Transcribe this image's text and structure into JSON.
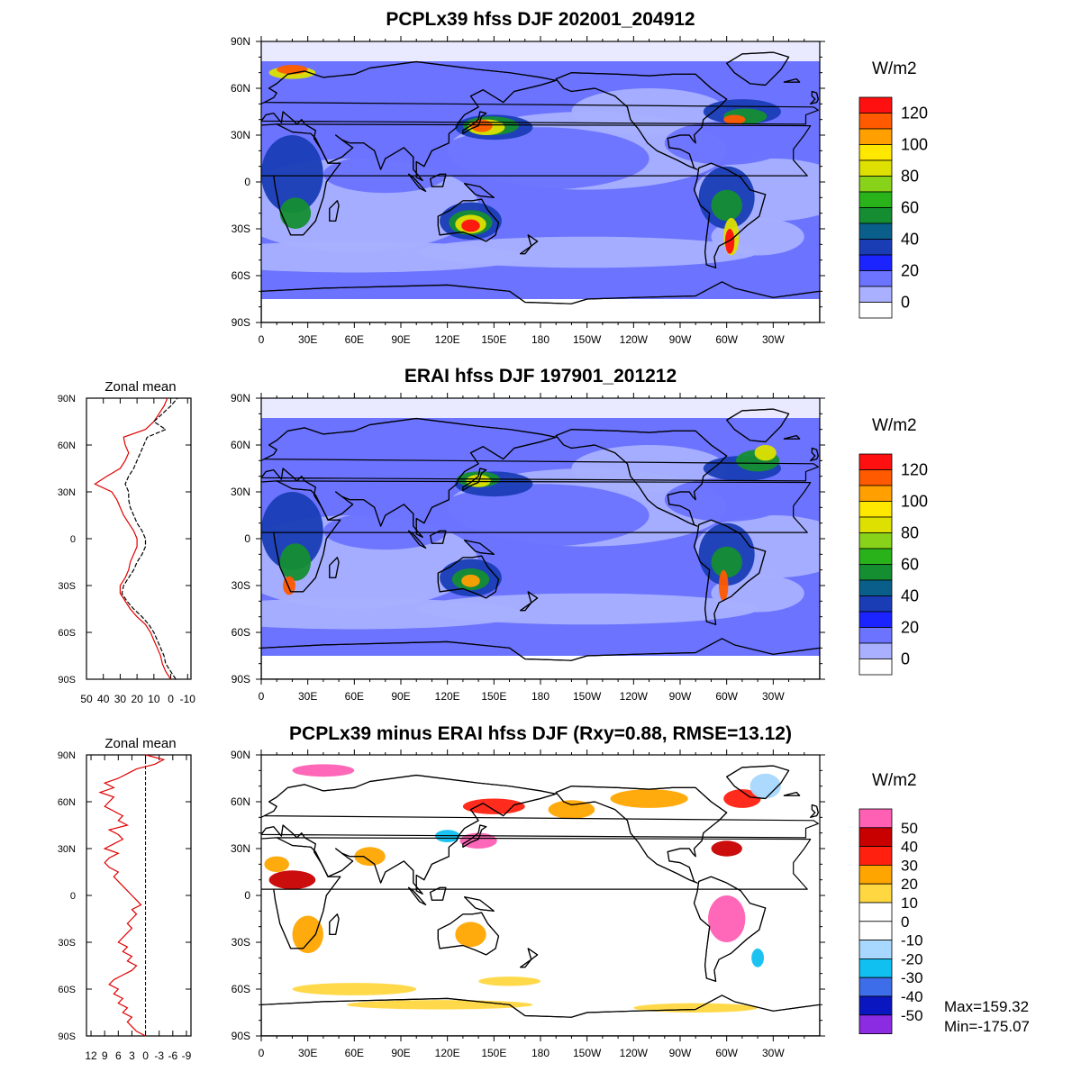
{
  "colors": {
    "full_levels": [
      "#ffffff",
      "#a8b0ff",
      "#6b73ff",
      "#1b23ff",
      "#1a3db6",
      "#0a5f8a",
      "#158e32",
      "#2ab21a",
      "#89d21a",
      "#dde000",
      "#ffe800",
      "#ffa000",
      "#ff5a00",
      "#ff1010"
    ],
    "diff_levels": [
      "#8b2be2",
      "#0a16c0",
      "#3d6de8",
      "#10c0f0",
      "#a8d8ff",
      "#ffffff",
      "#ffffff",
      "#ffd740",
      "#ffa500",
      "#ff2010",
      "#c80000",
      "#ff60b4"
    ],
    "land": "#ffffff",
    "coast": "#000000",
    "line_model": "#e00000",
    "line_obs": "#000000"
  },
  "panels": [
    {
      "id": "top",
      "title": "PCPLx39 hfss DJF 202001_204912",
      "type": "full",
      "unit": "W/m2",
      "colorbar_labels": [
        "120",
        "100",
        "80",
        "60",
        "40",
        "20",
        "0"
      ]
    },
    {
      "id": "middle",
      "title": "ERAI hfss DJF 197901_201212",
      "type": "full",
      "unit": "W/m2",
      "colorbar_labels": [
        "120",
        "100",
        "80",
        "60",
        "40",
        "20",
        "0"
      ]
    },
    {
      "id": "bottom",
      "title": "PCPLx39 minus ERAI hfss DJF (Rxy=0.88, RMSE=13.12)",
      "type": "diff",
      "unit": "W/m2",
      "colorbar_labels": [
        "50",
        "40",
        "30",
        "20",
        "10",
        "0",
        "-10",
        "-20",
        "-30",
        "-40",
        "-50"
      ],
      "max_label": "Max=159.32",
      "min_label": "Min=-175.07"
    }
  ],
  "axes": {
    "lat_labels": [
      "90N",
      "60N",
      "30N",
      "0",
      "30S",
      "60S",
      "90S"
    ],
    "lon_labels": [
      "0",
      "30E",
      "60E",
      "90E",
      "120E",
      "150E",
      "180",
      "150W",
      "120W",
      "90W",
      "60W",
      "30W"
    ]
  },
  "zonal_mean": [
    {
      "title": "Zonal mean",
      "x_labels": [
        "50",
        "40",
        "30",
        "20",
        "10",
        "0",
        "-10"
      ],
      "xlim": [
        50,
        -12
      ],
      "lat_labels": [
        "90N",
        "60N",
        "30N",
        "0",
        "30S",
        "60S",
        "90S"
      ],
      "model": [
        [
          -90,
          0
        ],
        [
          -85,
          3
        ],
        [
          -80,
          5
        ],
        [
          -75,
          6
        ],
        [
          -70,
          8
        ],
        [
          -65,
          10
        ],
        [
          -60,
          12
        ],
        [
          -55,
          15
        ],
        [
          -50,
          20
        ],
        [
          -45,
          24
        ],
        [
          -40,
          27
        ],
        [
          -35,
          30
        ],
        [
          -30,
          30
        ],
        [
          -25,
          27
        ],
        [
          -20,
          25
        ],
        [
          -15,
          24
        ],
        [
          -10,
          22
        ],
        [
          -5,
          20
        ],
        [
          0,
          20
        ],
        [
          5,
          22
        ],
        [
          10,
          25
        ],
        [
          15,
          28
        ],
        [
          20,
          30
        ],
        [
          25,
          32
        ],
        [
          30,
          35
        ],
        [
          35,
          45
        ],
        [
          40,
          38
        ],
        [
          45,
          30
        ],
        [
          50,
          27
        ],
        [
          55,
          25
        ],
        [
          60,
          27
        ],
        [
          65,
          28
        ],
        [
          70,
          15
        ],
        [
          75,
          10
        ],
        [
          80,
          7
        ],
        [
          85,
          4
        ],
        [
          90,
          2
        ]
      ],
      "obs": [
        [
          -90,
          -3
        ],
        [
          -85,
          0
        ],
        [
          -80,
          3
        ],
        [
          -75,
          4
        ],
        [
          -70,
          6
        ],
        [
          -65,
          8
        ],
        [
          -60,
          10
        ],
        [
          -55,
          13
        ],
        [
          -50,
          17
        ],
        [
          -45,
          22
        ],
        [
          -40,
          26
        ],
        [
          -35,
          29
        ],
        [
          -30,
          28
        ],
        [
          -25,
          25
        ],
        [
          -20,
          22
        ],
        [
          -15,
          20
        ],
        [
          -10,
          17
        ],
        [
          -5,
          15
        ],
        [
          0,
          15
        ],
        [
          5,
          17
        ],
        [
          10,
          20
        ],
        [
          15,
          22
        ],
        [
          20,
          24
        ],
        [
          25,
          25
        ],
        [
          30,
          25
        ],
        [
          35,
          27
        ],
        [
          40,
          25
        ],
        [
          45,
          22
        ],
        [
          50,
          20
        ],
        [
          55,
          18
        ],
        [
          60,
          16
        ],
        [
          65,
          14
        ],
        [
          70,
          3
        ],
        [
          75,
          10
        ],
        [
          80,
          5
        ],
        [
          85,
          0
        ],
        [
          90,
          -4
        ]
      ]
    },
    {
      "title": "Zonal mean",
      "x_labels": [
        "12",
        "9",
        "6",
        "3",
        "0",
        "-3",
        "-6",
        "-9"
      ],
      "xlim": [
        13,
        -10
      ],
      "lat_labels": [
        "90N",
        "60N",
        "30N",
        "0",
        "30S",
        "60S",
        "90S"
      ],
      "diff": [
        [
          -90,
          0
        ],
        [
          -87,
          2
        ],
        [
          -84,
          3
        ],
        [
          -81,
          4
        ],
        [
          -78,
          3
        ],
        [
          -75,
          5
        ],
        [
          -72,
          4
        ],
        [
          -69,
          6
        ],
        [
          -66,
          5
        ],
        [
          -63,
          7
        ],
        [
          -60,
          6
        ],
        [
          -57,
          8
        ],
        [
          -54,
          7
        ],
        [
          -51,
          5
        ],
        [
          -48,
          3
        ],
        [
          -45,
          2
        ],
        [
          -42,
          4
        ],
        [
          -39,
          3
        ],
        [
          -36,
          5
        ],
        [
          -33,
          4
        ],
        [
          -30,
          6
        ],
        [
          -27,
          5
        ],
        [
          -24,
          4
        ],
        [
          -21,
          3
        ],
        [
          -18,
          4
        ],
        [
          -15,
          3
        ],
        [
          -12,
          2
        ],
        [
          -9,
          3
        ],
        [
          -6,
          1
        ],
        [
          -3,
          2
        ],
        [
          0,
          3
        ],
        [
          3,
          4
        ],
        [
          6,
          5
        ],
        [
          9,
          6
        ],
        [
          12,
          7
        ],
        [
          15,
          6
        ],
        [
          18,
          8
        ],
        [
          21,
          9
        ],
        [
          24,
          8
        ],
        [
          27,
          6
        ],
        [
          30,
          9
        ],
        [
          33,
          7
        ],
        [
          36,
          5
        ],
        [
          39,
          6
        ],
        [
          42,
          8
        ],
        [
          45,
          4
        ],
        [
          48,
          6
        ],
        [
          51,
          5
        ],
        [
          54,
          7
        ],
        [
          57,
          9
        ],
        [
          60,
          8
        ],
        [
          63,
          7
        ],
        [
          66,
          10
        ],
        [
          69,
          7
        ],
        [
          72,
          9
        ],
        [
          75,
          6
        ],
        [
          78,
          4
        ],
        [
          81,
          2
        ],
        [
          84,
          -2
        ],
        [
          87,
          -4
        ],
        [
          90,
          0
        ]
      ]
    }
  ]
}
